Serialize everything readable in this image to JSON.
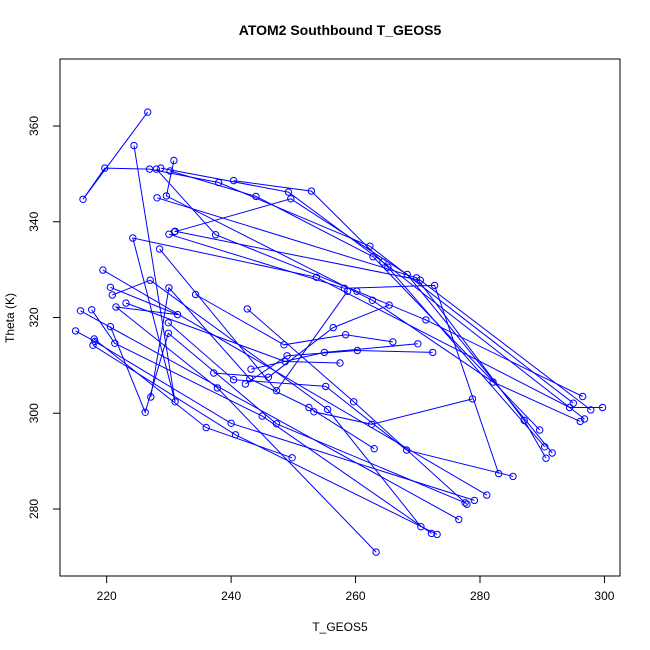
{
  "chart_data": {
    "type": "scatter",
    "title": "ATOM2 Southbound T_GEOS5",
    "xlabel": "T_GEOS5",
    "ylabel": "Theta (K)",
    "xlim": [
      212.5,
      302.5
    ],
    "ylim": [
      266,
      374
    ],
    "x_ticks": [
      220,
      240,
      260,
      280,
      300
    ],
    "y_ticks": [
      280,
      300,
      320,
      340,
      360
    ],
    "grid": false,
    "legend": "none",
    "series_color": "#0000ff",
    "style": "points connected by lines",
    "series": [
      {
        "points": [
          [
            228.0,
            351.0
          ],
          [
            237.5,
            337.3
          ],
          [
            260.2,
            325.5
          ],
          [
            271.3,
            319.5
          ],
          [
            296.5,
            303.5
          ]
        ]
      },
      {
        "points": [
          [
            230.8,
            352.8
          ],
          [
            229.6,
            345.4
          ],
          [
            262.7,
            323.6
          ],
          [
            282.1,
            306.5
          ],
          [
            296.1,
            298.3
          ]
        ]
      },
      {
        "points": [
          [
            226.6,
            362.9
          ],
          [
            216.2,
            344.7
          ],
          [
            219.7,
            351.2
          ],
          [
            226.9,
            351.0
          ],
          [
            238.0,
            348.2
          ],
          [
            262.3,
            334.9
          ],
          [
            295.0,
            302.1
          ]
        ]
      },
      {
        "points": [
          [
            224.4,
            355.9
          ],
          [
            231.0,
            302.4
          ],
          [
            224.2,
            336.6
          ],
          [
            253.7,
            328.4
          ],
          [
            294.4,
            301.2
          ],
          [
            299.7,
            301.2
          ]
        ]
      },
      {
        "points": [
          [
            228.7,
            351.2
          ],
          [
            249.2,
            346.2
          ],
          [
            264.4,
            331.6
          ],
          [
            296.8,
            298.8
          ]
        ]
      },
      {
        "points": [
          [
            230.2,
            350.6
          ],
          [
            244.0,
            345.3
          ],
          [
            262.8,
            332.7
          ],
          [
            289.6,
            296.5
          ]
        ]
      },
      {
        "points": [
          [
            240.4,
            348.6
          ],
          [
            252.9,
            346.4
          ],
          [
            265.2,
            330.5
          ],
          [
            290.4,
            293.0
          ]
        ]
      },
      {
        "points": [
          [
            228.1,
            345.0
          ],
          [
            269.8,
            328.3
          ],
          [
            287.1,
            298.5
          ],
          [
            290.6,
            290.6
          ]
        ]
      },
      {
        "points": [
          [
            230.9,
            337.9
          ],
          [
            249.6,
            344.8
          ],
          [
            268.3,
            329.0
          ],
          [
            291.6,
            291.7
          ]
        ]
      },
      {
        "points": [
          [
            231.0,
            338.0
          ],
          [
            270.4,
            327.8
          ],
          [
            297.8,
            300.7
          ]
        ]
      },
      {
        "points": [
          [
            230.0,
            337.4
          ],
          [
            258.2,
            326.1
          ],
          [
            272.7,
            326.7
          ],
          [
            283.0,
            287.4
          ]
        ]
      },
      {
        "points": [
          [
            219.4,
            329.9
          ],
          [
            281.1,
            282.9
          ]
        ]
      },
      {
        "points": [
          [
            220.6,
            326.3
          ],
          [
            231.4,
            320.6
          ],
          [
            221.5,
            322.2
          ],
          [
            237.8,
            305.3
          ],
          [
            263.3,
            271.0
          ]
        ]
      },
      {
        "points": [
          [
            220.9,
            324.7
          ],
          [
            227.0,
            327.8
          ],
          [
            255.5,
            300.8
          ],
          [
            270.5,
            276.3
          ]
        ]
      },
      {
        "points": [
          [
            215.8,
            321.4
          ],
          [
            276.6,
            277.8
          ]
        ]
      },
      {
        "points": [
          [
            217.6,
            321.6
          ],
          [
            221.3,
            314.6
          ],
          [
            245.0,
            299.4
          ],
          [
            272.2,
            274.9
          ]
        ]
      },
      {
        "points": [
          [
            220.6,
            318.1
          ],
          [
            226.2,
            300.2
          ],
          [
            229.9,
            316.7
          ],
          [
            247.3,
            297.8
          ],
          [
            277.6,
            281.3
          ]
        ]
      },
      {
        "points": [
          [
            215.0,
            317.2
          ],
          [
            218.1,
            315.0
          ],
          [
            240.0,
            297.9
          ],
          [
            279.1,
            281.8
          ]
        ]
      },
      {
        "points": [
          [
            217.8,
            314.2
          ],
          [
            240.7,
            295.5
          ],
          [
            273.1,
            274.7
          ]
        ]
      },
      {
        "points": [
          [
            229.9,
            318.9
          ],
          [
            240.4,
            307.0
          ],
          [
            255.2,
            305.6
          ],
          [
            268.2,
            292.3
          ],
          [
            285.3,
            286.8
          ]
        ]
      },
      {
        "points": [
          [
            234.3,
            324.8
          ],
          [
            248.5,
            314.3
          ],
          [
            258.4,
            316.4
          ],
          [
            266.0,
            314.9
          ]
        ]
      },
      {
        "points": [
          [
            242.6,
            321.8
          ],
          [
            259.7,
            302.4
          ],
          [
            277.9,
            281.0
          ]
        ]
      },
      {
        "points": [
          [
            223.1,
            323.0
          ],
          [
            248.7,
            310.8
          ],
          [
            257.5,
            310.5
          ]
        ]
      },
      {
        "points": [
          [
            227.1,
            303.4
          ],
          [
            230.0,
            326.2
          ],
          [
            243.0,
            307.2
          ],
          [
            252.5,
            301.2
          ],
          [
            263.0,
            292.6
          ]
        ]
      },
      {
        "points": [
          [
            228.5,
            334.3
          ],
          [
            247.3,
            304.7
          ],
          [
            258.7,
            325.5
          ]
        ]
      },
      {
        "points": [
          [
            243.2,
            309.2
          ],
          [
            255.0,
            312.7
          ],
          [
            270.0,
            314.5
          ]
        ]
      },
      {
        "points": [
          [
            249.8,
            290.7
          ],
          [
            236.0,
            297.0
          ],
          [
            218.0,
            315.5
          ]
        ]
      },
      {
        "points": [
          [
            253.3,
            300.3
          ],
          [
            262.6,
            297.7
          ],
          [
            278.8,
            303.0
          ]
        ]
      },
      {
        "points": [
          [
            242.3,
            306.1
          ],
          [
            249.0,
            312.0
          ],
          [
            260.3,
            313.1
          ],
          [
            272.4,
            312.7
          ]
        ]
      },
      {
        "points": [
          [
            237.2,
            308.4
          ],
          [
            246.0,
            307.5
          ],
          [
            256.4,
            317.9
          ],
          [
            265.4,
            322.6
          ]
        ]
      }
    ]
  }
}
